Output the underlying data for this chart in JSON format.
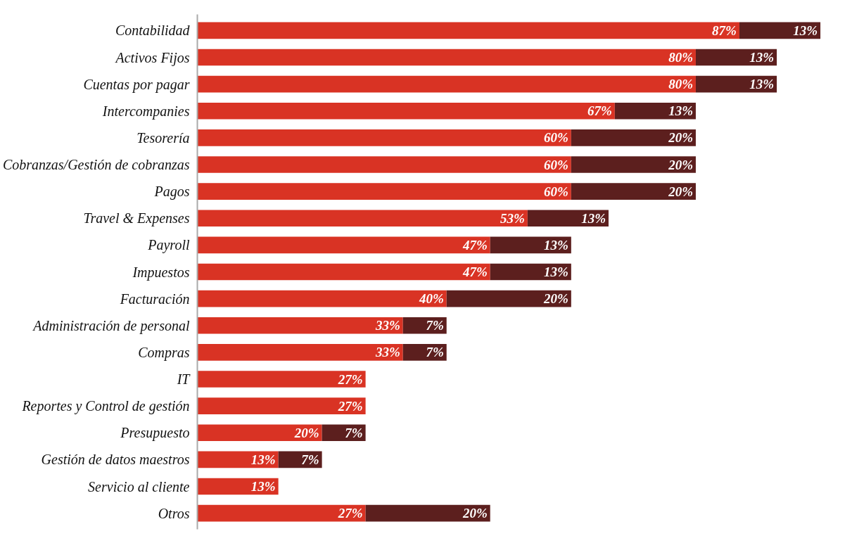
{
  "chart_data": {
    "type": "bar",
    "orientation": "horizontal",
    "stacked": true,
    "grid": false,
    "categories": [
      "Contabilidad",
      "Activos Fijos",
      "Cuentas por pagar",
      "Intercompanies",
      "Tesorería",
      "Cobranzas/Gestión de cobranzas",
      "Pagos",
      "Travel & Expenses",
      "Payroll",
      "Impuestos",
      "Facturación",
      "Administración de personal",
      "Compras",
      "IT",
      "Reportes y Control de gestión",
      "Presupuesto",
      "Gestión de datos maestros",
      "Servicio al cliente",
      "Otros"
    ],
    "series": [
      {
        "color": "#d93324",
        "values": [
          87,
          80,
          80,
          67,
          60,
          60,
          60,
          53,
          47,
          47,
          40,
          33,
          33,
          27,
          27,
          20,
          13,
          13,
          27
        ],
        "value_labels": [
          "87%",
          "80%",
          "80%",
          "67%",
          "60%",
          "60%",
          "60%",
          "53%",
          "47%",
          "47%",
          "40%",
          "33%",
          "33%",
          "27%",
          "27%",
          "20%",
          "13%",
          "13%",
          "27%"
        ]
      },
      {
        "color": "#5c1f1e",
        "values": [
          13,
          13,
          13,
          13,
          20,
          20,
          20,
          13,
          13,
          13,
          20,
          7,
          7,
          null,
          null,
          7,
          7,
          null,
          20
        ],
        "value_labels": [
          "13%",
          "13%",
          "13%",
          "13%",
          "20%",
          "20%",
          "20%",
          "13%",
          "13%",
          "13%",
          "20%",
          "7%",
          "7%",
          null,
          null,
          "7%",
          "7%",
          null,
          "20%"
        ]
      }
    ]
  }
}
